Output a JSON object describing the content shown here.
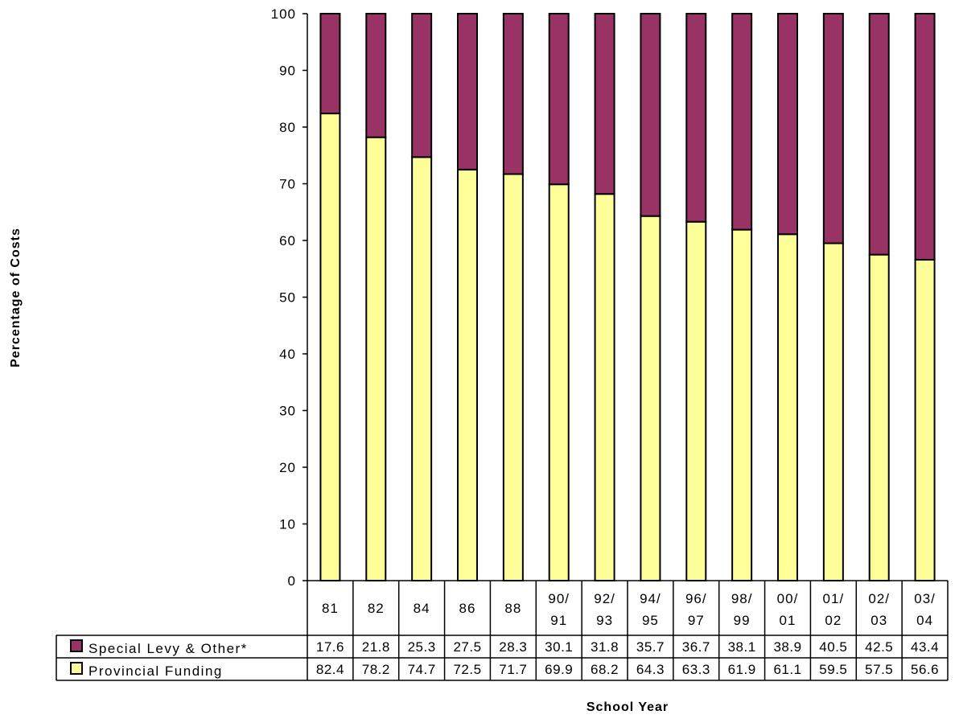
{
  "chart_data": {
    "type": "bar",
    "stacked": true,
    "percent_stacked": true,
    "xlabel": "School Year",
    "ylabel": "Percentage of Costs",
    "ylim": [
      0,
      100
    ],
    "yticks": [
      0,
      10,
      20,
      30,
      40,
      50,
      60,
      70,
      80,
      90,
      100
    ],
    "grid": false,
    "legend_placement": "data-table-left",
    "categories": [
      [
        "81"
      ],
      [
        "82"
      ],
      [
        "84"
      ],
      [
        "86"
      ],
      [
        "88"
      ],
      [
        "90/",
        "91"
      ],
      [
        "92/",
        "93"
      ],
      [
        "94/",
        "95"
      ],
      [
        "96/",
        "97"
      ],
      [
        "98/",
        "99"
      ],
      [
        "00/",
        "01"
      ],
      [
        "01/",
        "02"
      ],
      [
        "02/",
        "03"
      ],
      [
        "03/",
        "04"
      ]
    ],
    "series": [
      {
        "name": "Provincial Funding",
        "color": "#FFFF99",
        "values": [
          82.4,
          78.2,
          74.7,
          72.5,
          71.7,
          69.9,
          68.2,
          64.3,
          63.3,
          61.9,
          61.1,
          59.5,
          57.5,
          56.6
        ]
      },
      {
        "name": "Special Levy & Other*",
        "color": "#993366",
        "values": [
          17.6,
          21.8,
          25.3,
          27.5,
          28.3,
          30.1,
          31.8,
          35.7,
          36.7,
          38.1,
          38.9,
          40.5,
          42.5,
          43.4
        ]
      }
    ],
    "table_row_order": [
      1,
      0
    ]
  }
}
